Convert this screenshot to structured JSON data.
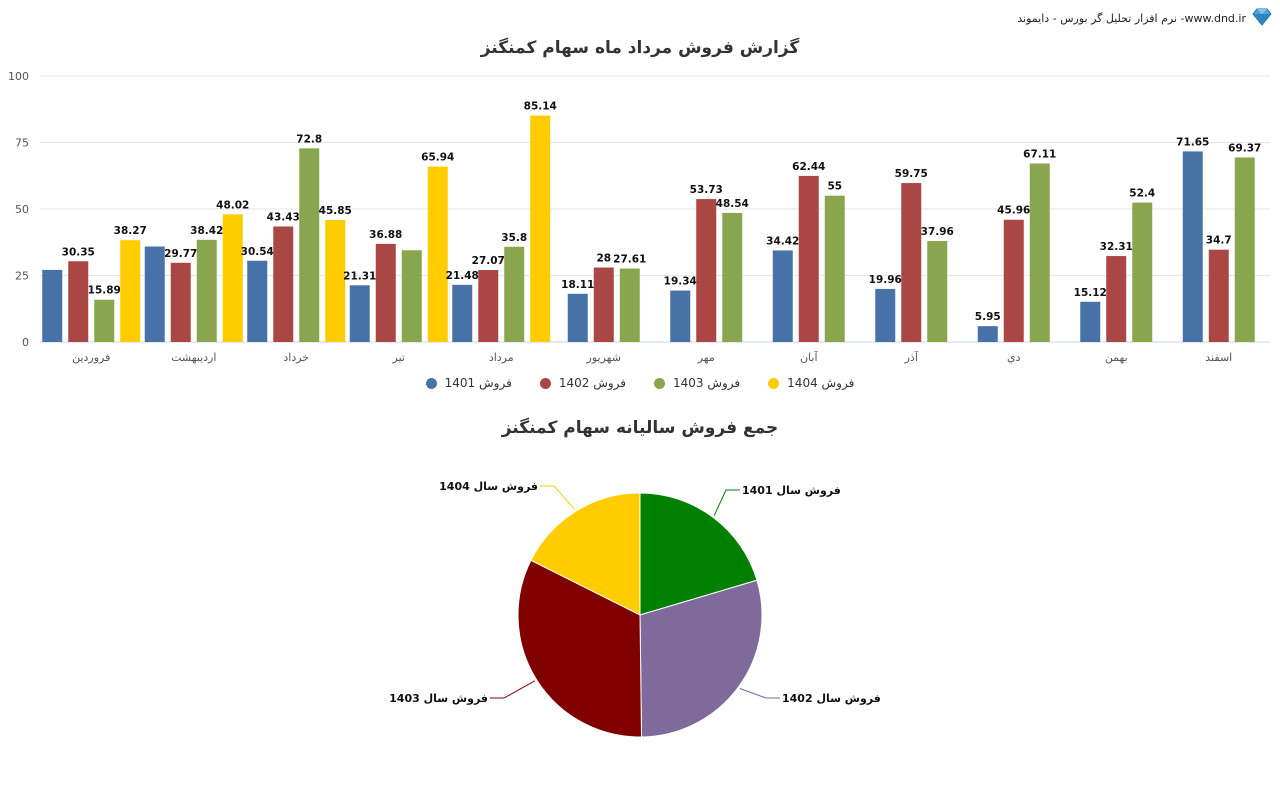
{
  "brand": {
    "text": "نرم افزار تحلیل گر بورس - دایموند -www.dnd.ir",
    "icon": "diamond-icon"
  },
  "colors": {
    "s1401": "#4672a8",
    "s1402": "#aa4643",
    "s1403": "#89a54e",
    "s1404": "#ffcc00",
    "pie1401": "#008000",
    "pie1402": "#80699b",
    "pie1403": "#800000",
    "pie1404": "#ffcc00",
    "grid": "#e6e6e6"
  },
  "chart_data": [
    {
      "type": "bar",
      "title": "گزارش فروش مرداد ماه سهام کمنگنز",
      "xlabel": "",
      "ylabel": "",
      "ylim": [
        0,
        100
      ],
      "yticks": [
        0,
        25,
        50,
        75,
        100
      ],
      "grid": true,
      "legend_position": "bottom",
      "categories": [
        "فروردین",
        "اردیبهشت",
        "خرداد",
        "تیر",
        "مرداد",
        "شهریور",
        "مهر",
        "آبان",
        "آذر",
        "دي",
        "بهمن",
        "اسفند"
      ],
      "series": [
        {
          "name": "فروش 1401",
          "values": [
            27.1,
            35.9,
            30.54,
            21.31,
            21.48,
            18.11,
            19.34,
            34.42,
            19.96,
            5.95,
            15.12,
            71.65
          ],
          "labels": [
            null,
            null,
            "30.54",
            "21.31",
            "21.48",
            "18.11",
            "19.34",
            "34.42",
            "19.96",
            "5.95",
            "15.12",
            "71.65"
          ]
        },
        {
          "name": "فروش 1402",
          "values": [
            30.35,
            29.77,
            43.43,
            36.88,
            27.07,
            28,
            53.73,
            62.44,
            59.75,
            45.96,
            32.31,
            34.7
          ],
          "labels": [
            "30.35",
            "29.77",
            "43.43",
            "36.88",
            "27.07",
            "28",
            "53.73",
            "62.44",
            "59.75",
            "45.96",
            "32.31",
            "34.7"
          ]
        },
        {
          "name": "فروش 1403",
          "values": [
            15.89,
            38.42,
            72.8,
            34.5,
            35.8,
            27.61,
            48.54,
            55,
            37.96,
            67.11,
            52.4,
            69.37
          ],
          "labels": [
            "15.89",
            "38.42",
            "72.8",
            null,
            "35.8",
            "27.61",
            "48.54",
            "55",
            "37.96",
            "67.11",
            "52.4",
            "69.37"
          ]
        },
        {
          "name": "فروش 1404",
          "values": [
            38.27,
            48.02,
            45.85,
            65.94,
            85.14,
            null,
            null,
            null,
            null,
            null,
            null,
            null
          ],
          "labels": [
            "38.27",
            "48.02",
            "45.85",
            "65.94",
            "85.14",
            null,
            null,
            null,
            null,
            null,
            null,
            null
          ]
        }
      ]
    },
    {
      "type": "pie",
      "title": "جمع فروش سالیانه سهام کمنگنز",
      "slices": [
        {
          "label": "فروش سال 1401",
          "value": 20.4
        },
        {
          "label": "فروش سال 1402",
          "value": 29.4
        },
        {
          "label": "فروش سال 1403",
          "value": 32.6
        },
        {
          "label": "فروش سال 1404",
          "value": 17.6
        }
      ]
    }
  ]
}
